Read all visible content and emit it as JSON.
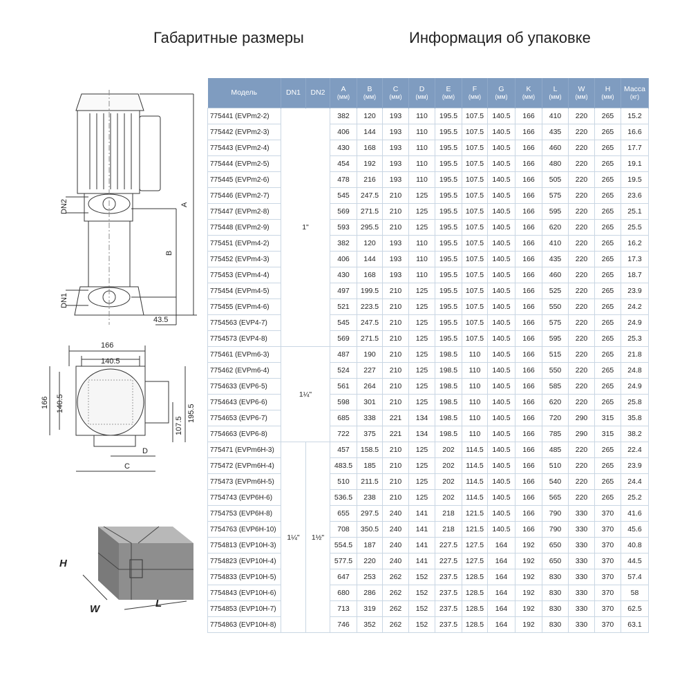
{
  "titles": {
    "dimensions": "Габаритные размеры",
    "packaging": "Информация об упаковке"
  },
  "table": {
    "headers": [
      {
        "label": "Модель",
        "unit": ""
      },
      {
        "label": "DN1",
        "unit": ""
      },
      {
        "label": "DN2",
        "unit": ""
      },
      {
        "label": "A",
        "unit": "(мм)"
      },
      {
        "label": "B",
        "unit": "(мм)"
      },
      {
        "label": "C",
        "unit": "(мм)"
      },
      {
        "label": "D",
        "unit": "(мм)"
      },
      {
        "label": "E",
        "unit": "(мм)"
      },
      {
        "label": "F",
        "unit": "(мм)"
      },
      {
        "label": "G",
        "unit": "(мм)"
      },
      {
        "label": "K",
        "unit": "(мм)"
      },
      {
        "label": "L",
        "unit": "(мм)"
      },
      {
        "label": "W",
        "unit": "(мм)"
      },
      {
        "label": "H",
        "unit": "(мм)"
      },
      {
        "label": "Масса",
        "unit": "(кг)"
      }
    ],
    "dn_groups": [
      {
        "rows": 15,
        "dn1": "1\"",
        "dn2": "",
        "merged": true
      },
      {
        "rows": 6,
        "dn1": "1¼\"",
        "dn2": "",
        "merged": true
      },
      {
        "rows": 12,
        "dn1": "1¼\"",
        "dn2": "1½\"",
        "merged": false
      }
    ],
    "rows": [
      [
        "775441 (EVPm2-2)",
        "382",
        "120",
        "193",
        "110",
        "195.5",
        "107.5",
        "140.5",
        "166",
        "410",
        "220",
        "265",
        "15.2"
      ],
      [
        "775442 (EVPm2-3)",
        "406",
        "144",
        "193",
        "110",
        "195.5",
        "107.5",
        "140.5",
        "166",
        "435",
        "220",
        "265",
        "16.6"
      ],
      [
        "775443 (EVPm2-4)",
        "430",
        "168",
        "193",
        "110",
        "195.5",
        "107.5",
        "140.5",
        "166",
        "460",
        "220",
        "265",
        "17.7"
      ],
      [
        "775444 (EVPm2-5)",
        "454",
        "192",
        "193",
        "110",
        "195.5",
        "107.5",
        "140.5",
        "166",
        "480",
        "220",
        "265",
        "19.1"
      ],
      [
        "775445 (EVPm2-6)",
        "478",
        "216",
        "193",
        "110",
        "195.5",
        "107.5",
        "140.5",
        "166",
        "505",
        "220",
        "265",
        "19.5"
      ],
      [
        "775446 (EVPm2-7)",
        "545",
        "247.5",
        "210",
        "125",
        "195.5",
        "107.5",
        "140.5",
        "166",
        "575",
        "220",
        "265",
        "23.6"
      ],
      [
        "775447 (EVPm2-8)",
        "569",
        "271.5",
        "210",
        "125",
        "195.5",
        "107.5",
        "140.5",
        "166",
        "595",
        "220",
        "265",
        "25.1"
      ],
      [
        "775448 (EVPm2-9)",
        "593",
        "295.5",
        "210",
        "125",
        "195.5",
        "107.5",
        "140.5",
        "166",
        "620",
        "220",
        "265",
        "25.5"
      ],
      [
        "775451 (EVPm4-2)",
        "382",
        "120",
        "193",
        "110",
        "195.5",
        "107.5",
        "140.5",
        "166",
        "410",
        "220",
        "265",
        "16.2"
      ],
      [
        "775452 (EVPm4-3)",
        "406",
        "144",
        "193",
        "110",
        "195.5",
        "107.5",
        "140.5",
        "166",
        "435",
        "220",
        "265",
        "17.3"
      ],
      [
        "775453 (EVPm4-4)",
        "430",
        "168",
        "193",
        "110",
        "195.5",
        "107.5",
        "140.5",
        "166",
        "460",
        "220",
        "265",
        "18.7"
      ],
      [
        "775454 (EVPm4-5)",
        "497",
        "199.5",
        "210",
        "125",
        "195.5",
        "107.5",
        "140.5",
        "166",
        "525",
        "220",
        "265",
        "23.9"
      ],
      [
        "775455 (EVPm4-6)",
        "521",
        "223.5",
        "210",
        "125",
        "195.5",
        "107.5",
        "140.5",
        "166",
        "550",
        "220",
        "265",
        "24.2"
      ],
      [
        "7754563 (EVP4-7)",
        "545",
        "247.5",
        "210",
        "125",
        "195.5",
        "107.5",
        "140.5",
        "166",
        "575",
        "220",
        "265",
        "24.9"
      ],
      [
        "7754573 (EVP4-8)",
        "569",
        "271.5",
        "210",
        "125",
        "195.5",
        "107.5",
        "140.5",
        "166",
        "595",
        "220",
        "265",
        "25.3"
      ],
      [
        "775461 (EVPm6-3)",
        "487",
        "190",
        "210",
        "125",
        "198.5",
        "110",
        "140.5",
        "166",
        "515",
        "220",
        "265",
        "21.8"
      ],
      [
        "775462 (EVPm6-4)",
        "524",
        "227",
        "210",
        "125",
        "198.5",
        "110",
        "140.5",
        "166",
        "550",
        "220",
        "265",
        "24.8"
      ],
      [
        "7754633 (EVP6-5)",
        "561",
        "264",
        "210",
        "125",
        "198.5",
        "110",
        "140.5",
        "166",
        "585",
        "220",
        "265",
        "24.9"
      ],
      [
        "7754643 (EVP6-6)",
        "598",
        "301",
        "210",
        "125",
        "198.5",
        "110",
        "140.5",
        "166",
        "620",
        "220",
        "265",
        "25.8"
      ],
      [
        "7754653 (EVP6-7)",
        "685",
        "338",
        "221",
        "134",
        "198.5",
        "110",
        "140.5",
        "166",
        "720",
        "290",
        "315",
        "35.8"
      ],
      [
        "7754663 (EVP6-8)",
        "722",
        "375",
        "221",
        "134",
        "198.5",
        "110",
        "140.5",
        "166",
        "785",
        "290",
        "315",
        "38.2"
      ],
      [
        "775471 (EVPm6H-3)",
        "457",
        "158.5",
        "210",
        "125",
        "202",
        "114.5",
        "140.5",
        "166",
        "485",
        "220",
        "265",
        "22.4"
      ],
      [
        "775472 (EVPm6H-4)",
        "483.5",
        "185",
        "210",
        "125",
        "202",
        "114.5",
        "140.5",
        "166",
        "510",
        "220",
        "265",
        "23.9"
      ],
      [
        "775473 (EVPm6H-5)",
        "510",
        "211.5",
        "210",
        "125",
        "202",
        "114.5",
        "140.5",
        "166",
        "540",
        "220",
        "265",
        "24.4"
      ],
      [
        "7754743 (EVP6H-6)",
        "536.5",
        "238",
        "210",
        "125",
        "202",
        "114.5",
        "140.5",
        "166",
        "565",
        "220",
        "265",
        "25.2"
      ],
      [
        "7754753 (EVP6H-8)",
        "655",
        "297.5",
        "240",
        "141",
        "218",
        "121.5",
        "140.5",
        "166",
        "790",
        "330",
        "370",
        "41.6"
      ],
      [
        "7754763 (EVP6H-10)",
        "708",
        "350.5",
        "240",
        "141",
        "218",
        "121.5",
        "140.5",
        "166",
        "790",
        "330",
        "370",
        "45.6"
      ],
      [
        "7754813 (EVP10H-3)",
        "554.5",
        "187",
        "240",
        "141",
        "227.5",
        "127.5",
        "164",
        "192",
        "650",
        "330",
        "370",
        "40.8"
      ],
      [
        "7754823 (EVP10H-4)",
        "577.5",
        "220",
        "240",
        "141",
        "227.5",
        "127.5",
        "164",
        "192",
        "650",
        "330",
        "370",
        "44.5"
      ],
      [
        "7754833 (EVP10H-5)",
        "647",
        "253",
        "262",
        "152",
        "237.5",
        "128.5",
        "164",
        "192",
        "830",
        "330",
        "370",
        "57.4"
      ],
      [
        "7754843 (EVP10H-6)",
        "680",
        "286",
        "262",
        "152",
        "237.5",
        "128.5",
        "164",
        "192",
        "830",
        "330",
        "370",
        "58"
      ],
      [
        "7754853 (EVP10H-7)",
        "713",
        "319",
        "262",
        "152",
        "237.5",
        "128.5",
        "164",
        "192",
        "830",
        "330",
        "370",
        "62.5"
      ],
      [
        "7754863 (EVP10H-8)",
        "746",
        "352",
        "262",
        "152",
        "237.5",
        "128.5",
        "164",
        "192",
        "830",
        "330",
        "370",
        "63.1"
      ]
    ]
  },
  "drawing": {
    "side": {
      "dn2": "DN2",
      "dn1": "DN1",
      "a": "A",
      "b": "B",
      "offset": "43.5"
    },
    "top": {
      "w1": "166",
      "w2": "140.5",
      "h1": "166",
      "h2": "140.5",
      "e": "195.5",
      "f": "107.5",
      "d": "D",
      "c": "C"
    },
    "box": {
      "h": "H",
      "w": "W",
      "l": "L"
    }
  },
  "colors": {
    "header_bg": "#7f9cc0",
    "grid": "#c9d6e3"
  }
}
